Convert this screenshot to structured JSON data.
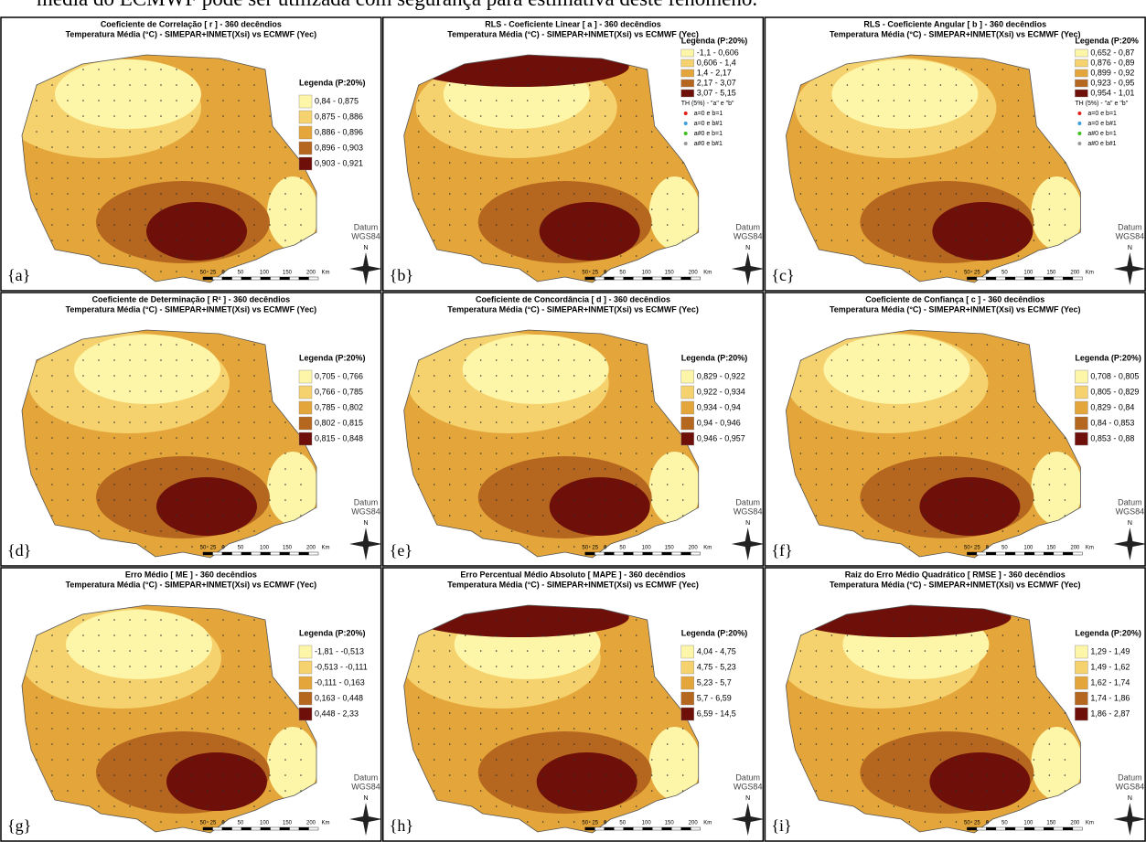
{
  "header": {
    "text": "média do ECMWF pode ser utilizada com segurança para estimativa deste fenômeno."
  },
  "subtitle": "Temperatura Média (°C) - SIMEPAR+INMET(Xsi) vs ECMWF (Yec)",
  "datum": [
    "Datum",
    "WGS84"
  ],
  "north": "N",
  "scale": [
    "50",
    "25",
    "0",
    "50",
    "100",
    "150",
    "200",
    "Km"
  ],
  "colors": [
    "#fdf6a8",
    "#f5d26e",
    "#e4a63a",
    "#b5661f",
    "#6e0f0a"
  ],
  "marker_legend": {
    "title": "TH (5%) - \"a\" e \"b\"",
    "items": [
      {
        "label": "a=0 e b=1",
        "color": "#e0201a"
      },
      {
        "label": "a=0 e b#1",
        "color": "#3aa0e0"
      },
      {
        "label": "a#0 e b=1",
        "color": "#40c020"
      },
      {
        "label": "a#0 e b#1",
        "color": "#999999"
      }
    ]
  },
  "panels": [
    {
      "title": "Coeficiente de Correlação [ r ] - 360 decêndios",
      "tag": "{a}",
      "legend_title": "Legenda (P:20%)",
      "legend": [
        "0,84 - 0,875",
        "0,875 - 0,886",
        "0,886 - 0,896",
        "0,896 - 0,903",
        "0,903 - 0,921"
      ]
    },
    {
      "title": "RLS - Coeficiente Linear [ a ] - 360 decêndios",
      "tag": "{b}",
      "legend_title": "Legenda (P:20%)",
      "legend": [
        "-1,1 - 0,606",
        "0,606 - 1,4",
        "1,4 - 2,17",
        "2,17 - 3,07",
        "3,07 - 5,15"
      ],
      "markers": true
    },
    {
      "title": "RLS - Coeficiente Angular [ b ] - 360 decêndios",
      "tag": "{c}",
      "legend_title": "Legenda (P:20%",
      "legend": [
        "0,652 - 0,87",
        "0,876 - 0,89",
        "0,899 - 0,92",
        "0,923 - 0,95",
        "0,954 - 1,01"
      ],
      "markers": true
    },
    {
      "title": "Coeficiente de Determinação [ R² ] - 360 decêndios",
      "tag": "{d}",
      "legend_title": "Legenda (P:20%)",
      "legend": [
        "0,705 - 0,766",
        "0,766 - 0,785",
        "0,785 - 0,802",
        "0,802 - 0,815",
        "0,815 - 0,848"
      ]
    },
    {
      "title": "Coeficiente de Concordância [ d ] - 360 decêndios",
      "tag": "{e}",
      "legend_title": "Legenda (P:20%)",
      "legend": [
        "0,829 - 0,922",
        "0,922 - 0,934",
        "0,934 - 0,94",
        "0,94 - 0,946",
        "0,946 - 0,957"
      ]
    },
    {
      "title": "Coeficiente de Confiança [ c ] - 360 decêndios",
      "tag": "{f}",
      "legend_title": "Legenda (P:20%)",
      "legend": [
        "0,708 - 0,805",
        "0,805 - 0,829",
        "0,829 - 0,84",
        "0,84 - 0,853",
        "0,853 - 0,88"
      ]
    },
    {
      "title": "Erro Médio   [ ME ] - 360 decêndios",
      "tag": "{g}",
      "legend_title": "Legenda (P:20%)",
      "legend": [
        "-1,81 - -0,513",
        "-0,513 - -0,111",
        "-0,111 - 0,163",
        "0,163 - 0,448",
        "0,448 - 2,33"
      ]
    },
    {
      "title": "Erro Percentual Médio Absoluto [ MAPE ] - 360 decêndios",
      "tag": "{h}",
      "legend_title": "Legenda (P:20%)",
      "legend": [
        "4,04 - 4,75",
        "4,75 - 5,23",
        "5,23 - 5,7",
        "5,7 - 6,59",
        "6,59 - 14,5"
      ]
    },
    {
      "title": "Raiz do Erro Médio Quadrático  [ RMSE ] - 360 decêndios",
      "tag": "{i}",
      "legend_title": "Legenda (P:20%)",
      "legend": [
        "1,29 - 1,49",
        "1,49 - 1,62",
        "1,62 - 1,74",
        "1,74 - 1,86",
        "1,86 - 2,87"
      ]
    }
  ]
}
